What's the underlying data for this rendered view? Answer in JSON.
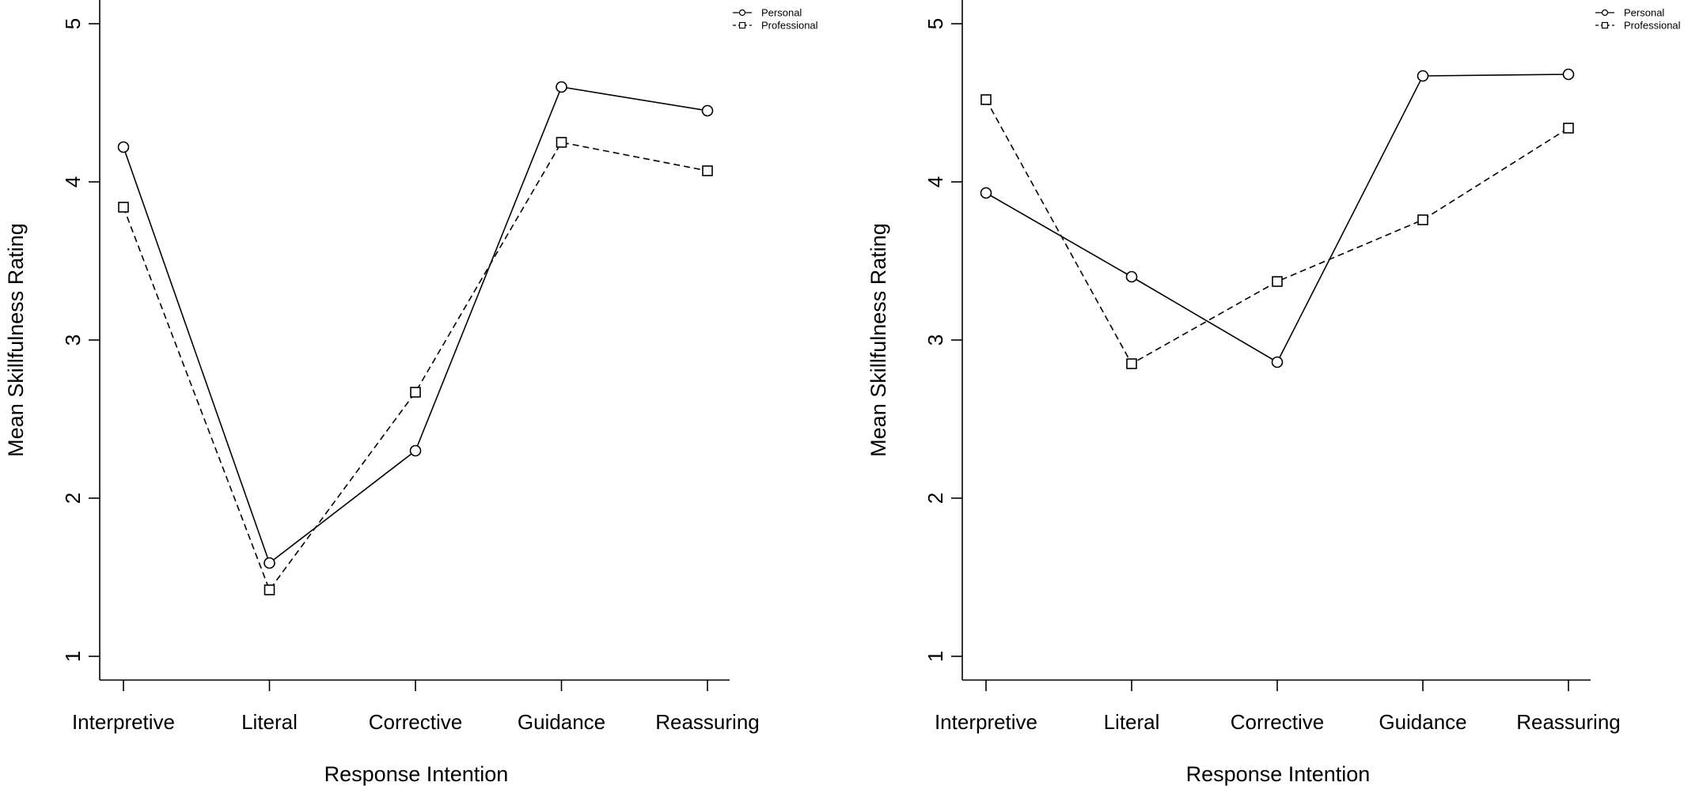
{
  "chart_data": [
    {
      "type": "line",
      "categories": [
        "Interpretive",
        "Literal",
        "Corrective",
        "Guidance",
        "Reassuring"
      ],
      "series": [
        {
          "name": "Personal",
          "values": [
            4.22,
            1.59,
            2.3,
            4.6,
            4.45
          ],
          "marker": "circle",
          "line": "solid"
        },
        {
          "name": "Professional",
          "values": [
            3.84,
            1.42,
            2.67,
            4.25,
            4.07
          ],
          "marker": "square",
          "line": "dashed"
        }
      ],
      "xlabel": "Response Intention",
      "ylabel": "Mean Skillfulness Rating",
      "ylim": [
        1,
        5
      ],
      "yticks": [
        1,
        2,
        3,
        4,
        5
      ],
      "legend_position": "top-right",
      "grid": false
    },
    {
      "type": "line",
      "categories": [
        "Interpretive",
        "Literal",
        "Corrective",
        "Guidance",
        "Reassuring"
      ],
      "series": [
        {
          "name": "Personal",
          "values": [
            3.93,
            3.4,
            2.86,
            4.67,
            4.68
          ],
          "marker": "circle",
          "line": "solid"
        },
        {
          "name": "Professional",
          "values": [
            4.52,
            2.85,
            3.37,
            3.76,
            4.34
          ],
          "marker": "square",
          "line": "dashed"
        }
      ],
      "xlabel": "Response Intention",
      "ylabel": "Mean Skillfulness Rating",
      "ylim": [
        1,
        5
      ],
      "yticks": [
        1,
        2,
        3,
        4,
        5
      ],
      "legend_position": "top-right",
      "grid": false
    }
  ]
}
